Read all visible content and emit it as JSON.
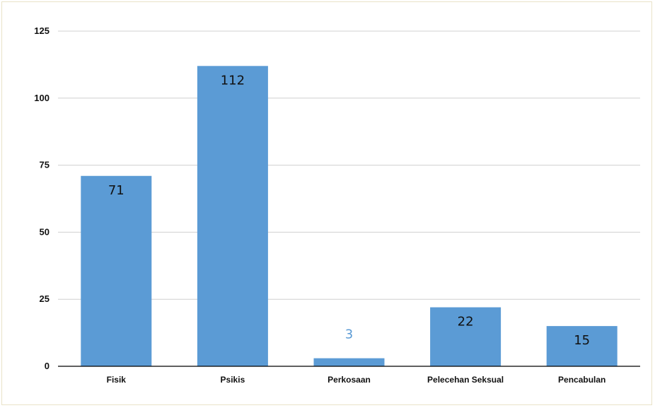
{
  "chart_data": {
    "type": "bar",
    "categories": [
      "Fisik",
      "Psikis",
      "Perkosaan",
      "Pelecehan Seksual",
      "Pencabulan"
    ],
    "values": [
      71,
      112,
      3,
      22,
      15
    ],
    "data_labels": [
      "71",
      "112",
      "3",
      "22",
      "15"
    ],
    "ylim": [
      0,
      125
    ],
    "yticks": [
      0,
      25,
      50,
      75,
      100,
      125
    ],
    "ytick_labels": [
      "0",
      "25",
      "50",
      "75",
      "100",
      "125"
    ],
    "grid": true,
    "legend": "none",
    "colors": {
      "bar": "#5b9bd5",
      "label_inside": "#111111",
      "label_outside": "#5b9bd5",
      "grid": "#d0d0d0",
      "axis": "#000000"
    }
  }
}
